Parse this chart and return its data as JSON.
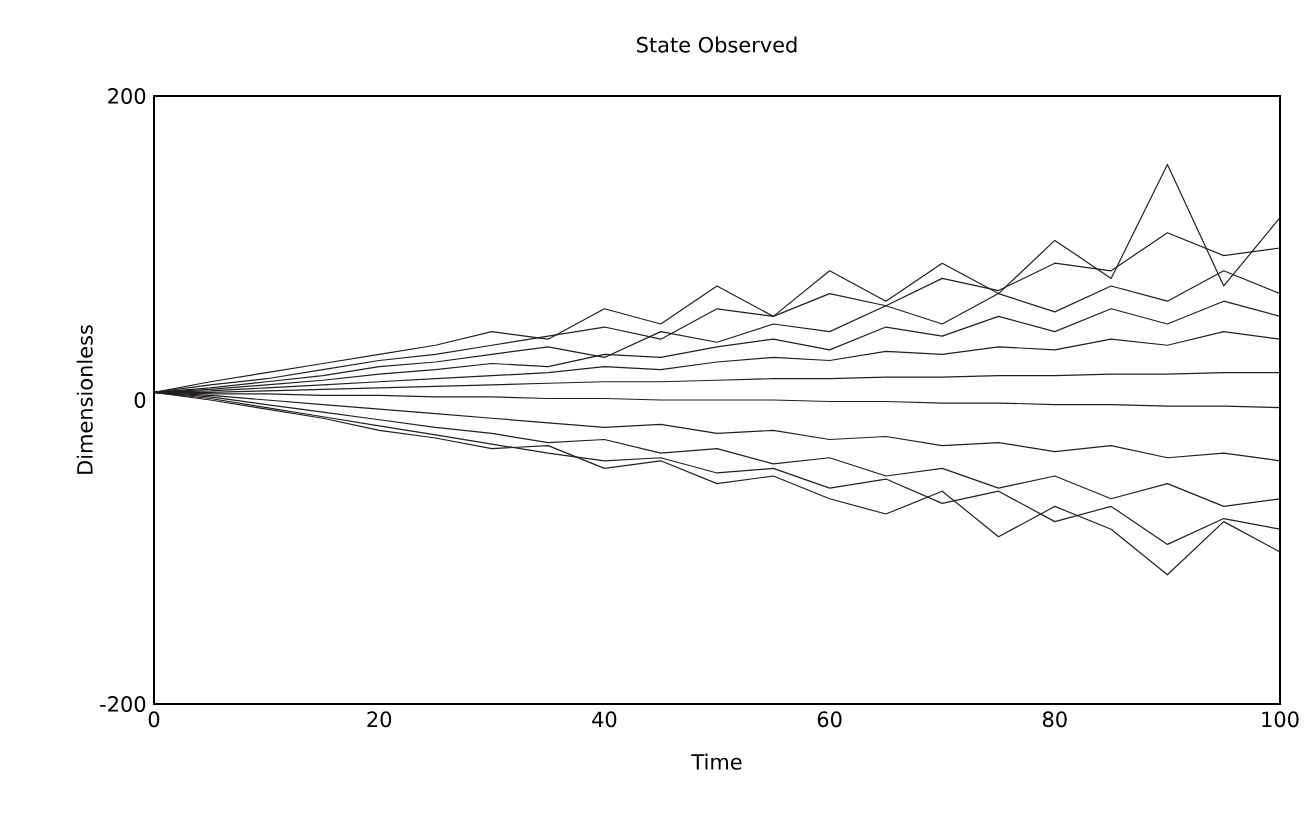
{
  "chart_data": {
    "type": "line",
    "title": "State Observed",
    "xlabel": "Time",
    "ylabel": "Dimensionless",
    "x": [
      0,
      5,
      10,
      15,
      20,
      25,
      30,
      35,
      40,
      45,
      50,
      55,
      60,
      65,
      70,
      75,
      80,
      85,
      90,
      95,
      100
    ],
    "xlim": [
      0,
      100
    ],
    "xticks": [
      0,
      20,
      40,
      60,
      80,
      100
    ],
    "ylim": [
      -200,
      200
    ],
    "yticks": [
      -200,
      0,
      200
    ],
    "grid": false,
    "marker": "none",
    "line_style": "solid",
    "series": [
      {
        "color": "#231f20",
        "values": [
          5,
          10,
          14,
          20,
          26,
          30,
          36,
          42,
          48,
          40,
          60,
          55,
          70,
          62,
          80,
          72,
          90,
          85,
          110,
          95,
          100
        ]
      },
      {
        "color": "#231f20",
        "values": [
          5,
          8,
          12,
          16,
          22,
          25,
          30,
          35,
          28,
          45,
          38,
          50,
          45,
          62,
          50,
          70,
          58,
          75,
          65,
          85,
          70
        ]
      },
      {
        "color": "#231f20",
        "values": [
          5,
          7,
          10,
          13,
          17,
          20,
          24,
          22,
          30,
          28,
          35,
          40,
          33,
          48,
          42,
          55,
          45,
          60,
          50,
          65,
          55
        ]
      },
      {
        "color": "#231f20",
        "values": [
          5,
          6,
          8,
          10,
          12,
          14,
          16,
          18,
          22,
          20,
          25,
          28,
          26,
          32,
          30,
          35,
          33,
          40,
          36,
          45,
          40
        ]
      },
      {
        "color": "#231f20",
        "values": [
          5,
          5,
          6,
          7,
          8,
          9,
          10,
          11,
          12,
          12,
          13,
          14,
          14,
          15,
          15,
          16,
          16,
          17,
          17,
          18,
          18
        ]
      },
      {
        "color": "#231f20",
        "values": [
          5,
          4,
          4,
          3,
          3,
          2,
          2,
          1,
          1,
          0,
          0,
          0,
          -1,
          -1,
          -2,
          -2,
          -3,
          -3,
          -4,
          -4,
          -5
        ]
      },
      {
        "color": "#231f20",
        "values": [
          5,
          3,
          0,
          -3,
          -6,
          -9,
          -12,
          -15,
          -18,
          -16,
          -22,
          -20,
          -26,
          -24,
          -30,
          -28,
          -34,
          -30,
          -38,
          -35,
          -40
        ]
      },
      {
        "color": "#231f20",
        "values": [
          5,
          2,
          -3,
          -8,
          -13,
          -18,
          -22,
          -28,
          -26,
          -35,
          -32,
          -42,
          -38,
          -50,
          -45,
          -58,
          -50,
          -65,
          -55,
          -70,
          -65
        ]
      },
      {
        "color": "#231f20",
        "values": [
          5,
          1,
          -5,
          -11,
          -17,
          -23,
          -29,
          -35,
          -40,
          -38,
          -48,
          -45,
          -58,
          -52,
          -68,
          -60,
          -80,
          -70,
          -95,
          -78,
          -85
        ]
      },
      {
        "color": "#231f20",
        "values": [
          5,
          0,
          -6,
          -12,
          -20,
          -25,
          -32,
          -30,
          -45,
          -40,
          -55,
          -50,
          -65,
          -75,
          -60,
          -90,
          -70,
          -85,
          -115,
          -80,
          -100
        ]
      },
      {
        "color": "#231f20",
        "values": [
          5,
          12,
          18,
          24,
          30,
          36,
          45,
          40,
          60,
          50,
          75,
          55,
          85,
          65,
          90,
          70,
          105,
          80,
          155,
          75,
          120
        ]
      }
    ]
  }
}
